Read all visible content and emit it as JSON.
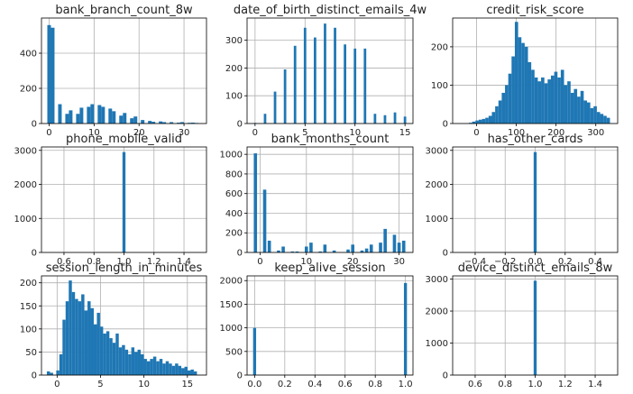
{
  "colors": {
    "bar": "#1f77b4",
    "grid": "#b0b0b0",
    "axis": "#000000",
    "background": "#ffffff"
  },
  "chart_data": [
    {
      "type": "bar",
      "title": "bank_branch_count_8w",
      "grid": true,
      "xlim": [
        -1.7,
        35
      ],
      "ylim": [
        0,
        600
      ],
      "xticks": [
        0,
        10,
        20,
        30
      ],
      "yticks": [
        0,
        200,
        400
      ],
      "bin_width": 0.8,
      "x": [
        0,
        0.8,
        1.6,
        2.4,
        3.2,
        4,
        4.8,
        5.6,
        6.4,
        7.2,
        8,
        8.8,
        9.6,
        10.4,
        11.2,
        12,
        12.8,
        13.6,
        14.4,
        15.2,
        16,
        16.8,
        17.6,
        18.4,
        19.2,
        20,
        20.8,
        21.6,
        22.4,
        23.2,
        24,
        24.8,
        25.6,
        26.4,
        27.2,
        28,
        28.8,
        29.6,
        30.4,
        31.2,
        32,
        32.8
      ],
      "values": [
        560,
        545,
        0,
        110,
        0,
        55,
        75,
        0,
        55,
        90,
        0,
        95,
        110,
        0,
        105,
        95,
        0,
        85,
        70,
        0,
        45,
        60,
        0,
        30,
        40,
        0,
        20,
        0,
        15,
        10,
        0,
        12,
        8,
        0,
        8,
        0,
        5,
        8,
        0,
        4,
        5,
        3
      ]
    },
    {
      "type": "bar",
      "title": "date_of_birth_distinct_emails_4w",
      "grid": true,
      "xlim": [
        -0.8,
        15.8
      ],
      "ylim": [
        0,
        380
      ],
      "xticks": [
        0,
        5,
        10,
        15
      ],
      "yticks": [
        0,
        100,
        200,
        300
      ],
      "bin_width": 0.25,
      "x": [
        0,
        1,
        2,
        3,
        4,
        5,
        6,
        7,
        8,
        9,
        10,
        11,
        12,
        13,
        14,
        15
      ],
      "values": [
        2,
        35,
        115,
        195,
        280,
        345,
        310,
        360,
        345,
        285,
        270,
        270,
        35,
        30,
        40,
        25
      ]
    },
    {
      "type": "bar",
      "title": "credit_risk_score",
      "grid": true,
      "xlim": [
        -60,
        355
      ],
      "ylim": [
        0,
        275
      ],
      "xticks": [
        0,
        100,
        200,
        300
      ],
      "yticks": [
        0,
        100,
        200
      ],
      "bin_width": 8.25,
      "x": [
        -15,
        -6.75,
        1.5,
        9.75,
        18,
        26.25,
        34.5,
        42.75,
        51,
        59.25,
        67.5,
        75.75,
        84,
        92.25,
        100.5,
        108.75,
        117,
        125.25,
        133.5,
        141.75,
        150,
        158.25,
        166.5,
        174.75,
        183,
        191.25,
        199.5,
        207.75,
        216,
        224.25,
        232.5,
        240.75,
        249,
        257.25,
        265.5,
        273.75,
        282,
        290.25,
        298.5,
        306.75,
        315,
        323.25,
        331.5
      ],
      "values": [
        2,
        5,
        8,
        10,
        12,
        15,
        20,
        30,
        45,
        60,
        80,
        100,
        130,
        175,
        265,
        225,
        210,
        200,
        160,
        140,
        120,
        110,
        120,
        105,
        115,
        125,
        135,
        120,
        140,
        100,
        110,
        80,
        90,
        70,
        85,
        60,
        55,
        40,
        45,
        30,
        25,
        20,
        15
      ]
    },
    {
      "type": "bar",
      "title": "phone_mobile_valid",
      "grid": true,
      "xlim": [
        0.45,
        1.55
      ],
      "ylim": [
        0,
        3100
      ],
      "xticks": [
        0.6,
        0.8,
        1.0,
        1.2,
        1.4
      ],
      "xtick_labels": [
        "0.6",
        "0.8",
        "1.0",
        "1.2",
        "1.4"
      ],
      "yticks": [
        0,
        1000,
        2000,
        3000
      ],
      "bin_width": 0.02,
      "x": [
        1.0
      ],
      "values": [
        2950
      ]
    },
    {
      "type": "bar",
      "title": "bank_months_count",
      "grid": true,
      "xlim": [
        -2.8,
        33
      ],
      "ylim": [
        0,
        1075
      ],
      "xticks": [
        0,
        10,
        20,
        30
      ],
      "yticks": [
        0,
        200,
        400,
        600,
        800,
        1000
      ],
      "bin_width": 0.7,
      "x": [
        -1,
        0,
        1,
        2,
        3,
        4,
        5,
        6,
        7,
        8,
        9,
        10,
        11,
        12,
        13,
        14,
        15,
        16,
        17,
        18,
        19,
        20,
        21,
        22,
        23,
        24,
        25,
        26,
        27,
        28,
        29,
        30,
        31
      ],
      "values": [
        1010,
        0,
        640,
        120,
        0,
        20,
        60,
        0,
        10,
        10,
        0,
        60,
        100,
        0,
        10,
        80,
        0,
        20,
        0,
        0,
        30,
        80,
        0,
        20,
        40,
        80,
        0,
        100,
        240,
        0,
        180,
        100,
        120
      ]
    },
    {
      "type": "bar",
      "title": "has_other_cards",
      "grid": true,
      "xlim": [
        -0.55,
        0.55
      ],
      "ylim": [
        0,
        3100
      ],
      "xticks": [
        -0.4,
        -0.2,
        0.0,
        0.2,
        0.4
      ],
      "xtick_labels": [
        "−0.4",
        "−0.2",
        "0.0",
        "0.2",
        "0.4"
      ],
      "yticks": [
        0,
        1000,
        2000,
        3000
      ],
      "bin_width": 0.02,
      "x": [
        0.0
      ],
      "values": [
        2950
      ]
    },
    {
      "type": "bar",
      "title": "session_length_in_minutes",
      "grid": true,
      "xlim": [
        -1.8,
        17.2
      ],
      "ylim": [
        0,
        215
      ],
      "xticks": [
        0,
        5,
        10,
        15
      ],
      "yticks": [
        0,
        50,
        100,
        150,
        200
      ],
      "bin_width": 0.36,
      "x": [
        -1,
        -0.64,
        -0.28,
        0.08,
        0.44,
        0.8,
        1.16,
        1.52,
        1.88,
        2.24,
        2.6,
        2.96,
        3.32,
        3.68,
        4.04,
        4.4,
        4.76,
        5.12,
        5.48,
        5.84,
        6.2,
        6.56,
        6.92,
        7.28,
        7.64,
        8,
        8.36,
        8.72,
        9.08,
        9.44,
        9.8,
        10.16,
        10.52,
        10.88,
        11.24,
        11.6,
        11.96,
        12.32,
        12.68,
        13.04,
        13.4,
        13.76,
        14.12,
        14.48,
        14.84,
        15.2,
        15.56,
        15.92
      ],
      "values": [
        8,
        5,
        0,
        10,
        45,
        120,
        160,
        205,
        180,
        165,
        160,
        175,
        140,
        160,
        145,
        110,
        135,
        105,
        90,
        95,
        80,
        70,
        90,
        60,
        65,
        55,
        45,
        60,
        50,
        55,
        45,
        35,
        30,
        35,
        40,
        30,
        35,
        25,
        30,
        25,
        20,
        25,
        20,
        15,
        18,
        10,
        12,
        8
      ]
    },
    {
      "type": "bar",
      "title": "keep_alive_session",
      "grid": true,
      "xlim": [
        -0.05,
        1.05
      ],
      "ylim": [
        0,
        2100
      ],
      "xticks": [
        0.0,
        0.2,
        0.4,
        0.6,
        0.8,
        1.0
      ],
      "xtick_labels": [
        "0.0",
        "0.2",
        "0.4",
        "0.6",
        "0.8",
        "1.0"
      ],
      "yticks": [
        0,
        500,
        1000,
        1500,
        2000
      ],
      "bin_width": 0.02,
      "x": [
        0.0,
        1.0
      ],
      "values": [
        1000,
        1950
      ]
    },
    {
      "type": "bar",
      "title": "device_distinct_emails_8w",
      "grid": true,
      "xlim": [
        0.45,
        1.55
      ],
      "ylim": [
        0,
        3100
      ],
      "xticks": [
        0.6,
        0.8,
        1.0,
        1.2,
        1.4
      ],
      "xtick_labels": [
        "0.6",
        "0.8",
        "1.0",
        "1.2",
        "1.4"
      ],
      "yticks": [
        0,
        1000,
        2000,
        3000
      ],
      "bin_width": 0.02,
      "x": [
        1.0
      ],
      "values": [
        2950
      ]
    }
  ]
}
